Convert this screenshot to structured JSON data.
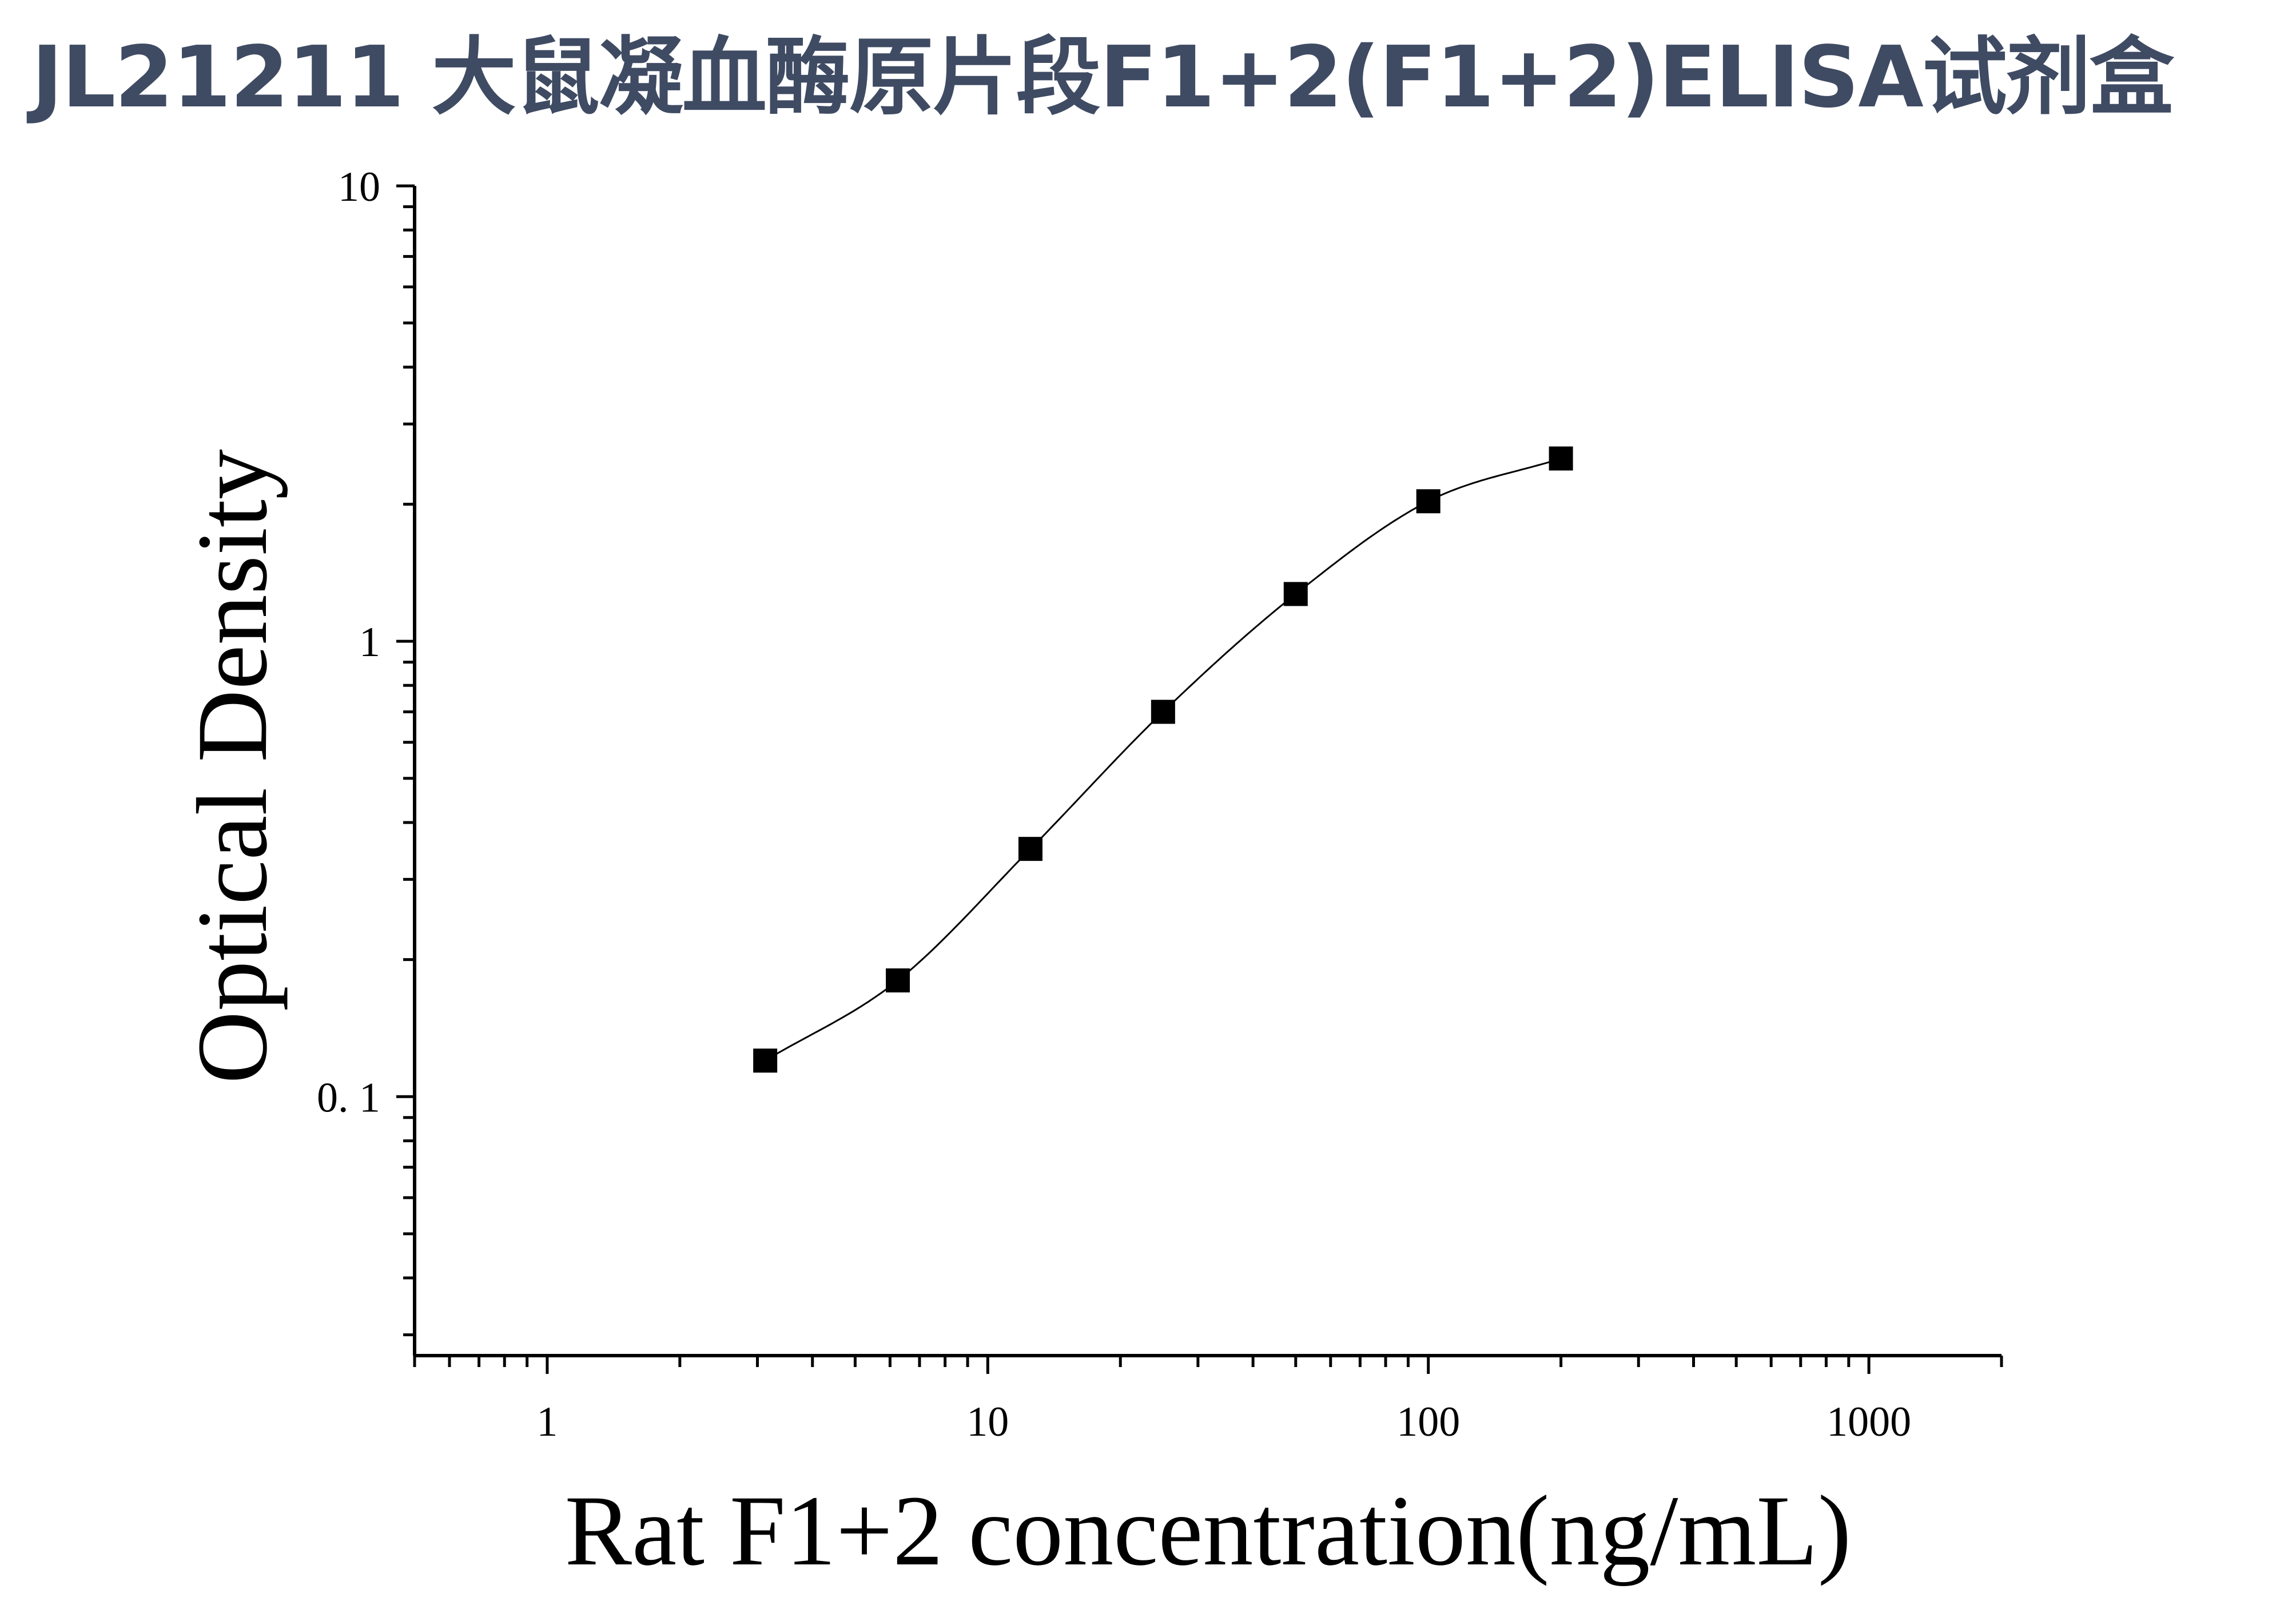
{
  "title": "JL21211 大鼠凝血酶原片段F1+2(F1+2)ELISA试剂盒",
  "chart_data": {
    "type": "scatter",
    "title": "",
    "xlabel": "Rat F1+2 concentration(ng/mL)",
    "ylabel": "Optical Density",
    "xscale": "log",
    "yscale": "log",
    "xlim": [
      0.5,
      2000
    ],
    "ylim": [
      0.027,
      10
    ],
    "xticks": [
      "1",
      "10",
      "100",
      "1000"
    ],
    "yticks": [
      "0. 1",
      "1",
      "10"
    ],
    "grid": false,
    "legend": "none",
    "marker": "square",
    "fit_curve": "smooth sigmoidal fit through points",
    "series": [
      {
        "x": [
          3.125,
          6.25,
          12.5,
          25,
          50,
          100,
          200
        ],
        "y": [
          0.12,
          0.18,
          0.35,
          0.7,
          1.27,
          2.03,
          2.52
        ]
      }
    ],
    "colors": {
      "points": "#000000",
      "curve": "#000000",
      "axes": "#000000"
    }
  }
}
